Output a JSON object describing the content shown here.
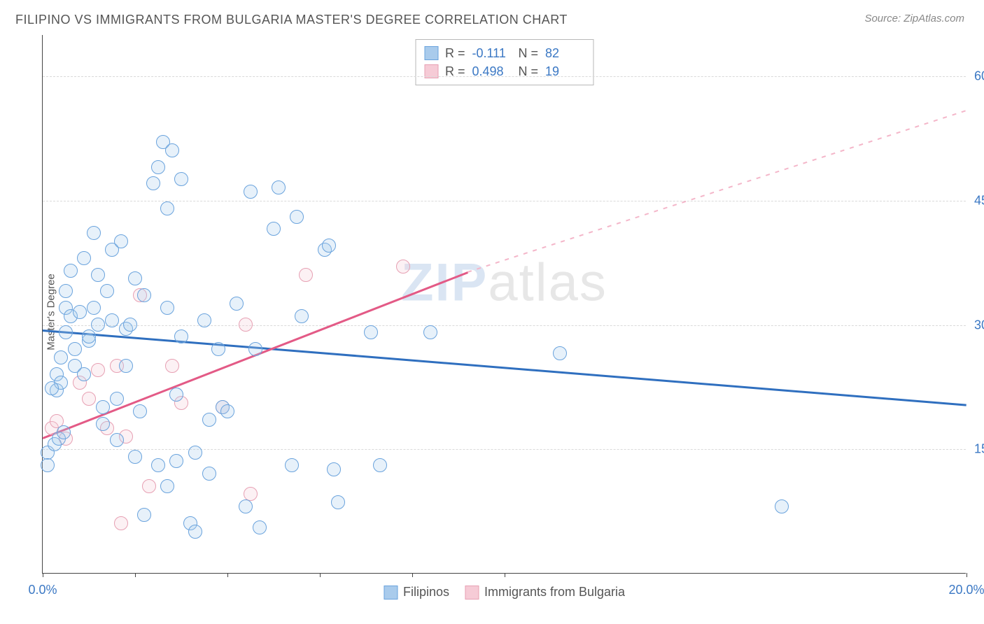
{
  "title": "FILIPINO VS IMMIGRANTS FROM BULGARIA MASTER'S DEGREE CORRELATION CHART",
  "source": "Source: ZipAtlas.com",
  "ylabel": "Master's Degree",
  "watermark": {
    "part1": "ZIP",
    "part2": "atlas"
  },
  "chart": {
    "type": "scatter",
    "background_color": "#ffffff",
    "grid_color": "#d9d9d9",
    "axis_color": "#444444",
    "label_color": "#3b78c4",
    "title_color": "#555555",
    "title_fontsize": 18,
    "label_fontsize": 18,
    "ylabel_fontsize": 15,
    "xlim": [
      0,
      20
    ],
    "ylim": [
      0,
      65
    ],
    "xticks": [
      0,
      2,
      4,
      6,
      8,
      10,
      20
    ],
    "xtick_labels": {
      "0": "0.0%",
      "20": "20.0%"
    },
    "yticks": [
      15,
      30,
      45,
      60
    ],
    "ytick_labels": {
      "15": "15.0%",
      "30": "30.0%",
      "45": "45.0%",
      "60": "60.0%"
    },
    "marker_radius": 10,
    "marker_stroke_width": 1.5,
    "fill_opacity": 0.28,
    "series": [
      {
        "name": "Filipinos",
        "color_stroke": "#6aa3dd",
        "color_fill": "#a9cbec",
        "r_label": "R =",
        "r_value": "-0.111",
        "n_label": "N =",
        "n_value": "82",
        "trendline": {
          "x1": 0,
          "y1": 29.5,
          "x2": 20,
          "y2": 20.5,
          "color": "#2f6fbf",
          "width": 2.5,
          "dash": "none"
        },
        "points": [
          [
            0.1,
            14.5
          ],
          [
            0.1,
            13.0
          ],
          [
            0.3,
            24.0
          ],
          [
            0.3,
            22.0
          ],
          [
            0.4,
            23.0
          ],
          [
            0.4,
            26.0
          ],
          [
            0.5,
            32.0
          ],
          [
            0.5,
            34.0
          ],
          [
            0.5,
            29.0
          ],
          [
            0.6,
            31.0
          ],
          [
            0.6,
            36.5
          ],
          [
            0.7,
            27.0
          ],
          [
            0.7,
            25.0
          ],
          [
            0.8,
            31.5
          ],
          [
            0.9,
            38.0
          ],
          [
            0.9,
            24.0
          ],
          [
            1.0,
            28.0
          ],
          [
            1.0,
            28.5
          ],
          [
            1.1,
            41.0
          ],
          [
            1.1,
            32.0
          ],
          [
            1.2,
            36.0
          ],
          [
            1.2,
            30.0
          ],
          [
            1.3,
            20.0
          ],
          [
            1.3,
            18.0
          ],
          [
            1.4,
            34.0
          ],
          [
            1.5,
            30.5
          ],
          [
            1.5,
            39.0
          ],
          [
            1.6,
            21.0
          ],
          [
            1.6,
            16.0
          ],
          [
            1.7,
            40.0
          ],
          [
            1.8,
            29.5
          ],
          [
            1.8,
            25.0
          ],
          [
            1.9,
            30.0
          ],
          [
            2.0,
            35.5
          ],
          [
            2.0,
            14.0
          ],
          [
            2.1,
            19.5
          ],
          [
            2.2,
            33.5
          ],
          [
            2.2,
            7.0
          ],
          [
            2.4,
            47.0
          ],
          [
            2.5,
            49.0
          ],
          [
            2.5,
            13.0
          ],
          [
            2.6,
            52.0
          ],
          [
            2.7,
            44.0
          ],
          [
            2.7,
            32.0
          ],
          [
            2.7,
            10.5
          ],
          [
            2.8,
            51.0
          ],
          [
            2.9,
            21.5
          ],
          [
            2.9,
            13.5
          ],
          [
            3.0,
            28.5
          ],
          [
            3.0,
            47.5
          ],
          [
            3.2,
            6.0
          ],
          [
            3.3,
            14.5
          ],
          [
            3.3,
            5.0
          ],
          [
            3.5,
            30.5
          ],
          [
            3.6,
            18.5
          ],
          [
            3.6,
            12.0
          ],
          [
            3.8,
            27.0
          ],
          [
            3.9,
            20.0
          ],
          [
            4.0,
            19.5
          ],
          [
            4.2,
            32.5
          ],
          [
            4.4,
            8.0
          ],
          [
            4.5,
            46.0
          ],
          [
            4.6,
            27.0
          ],
          [
            4.7,
            5.5
          ],
          [
            5.0,
            41.5
          ],
          [
            5.1,
            46.5
          ],
          [
            5.4,
            13.0
          ],
          [
            5.5,
            43.0
          ],
          [
            5.6,
            31.0
          ],
          [
            6.1,
            39.0
          ],
          [
            6.2,
            39.5
          ],
          [
            6.3,
            12.5
          ],
          [
            6.4,
            8.5
          ],
          [
            7.1,
            29.0
          ],
          [
            7.3,
            13.0
          ],
          [
            8.4,
            29.0
          ],
          [
            11.2,
            26.5
          ],
          [
            16.0,
            8.0
          ],
          [
            0.2,
            22.3
          ],
          [
            0.25,
            15.5
          ],
          [
            0.35,
            16.2
          ],
          [
            0.45,
            17.0
          ]
        ]
      },
      {
        "name": "Immigrants from Bulgria",
        "display_name": "Immigrants from Bulgaria",
        "color_stroke": "#e7a0b3",
        "color_fill": "#f6cbd6",
        "r_label": "R =",
        "r_value": "0.498",
        "n_label": "N =",
        "n_value": "19",
        "trendline_solid": {
          "x1": 0,
          "y1": 16.5,
          "x2": 9.2,
          "y2": 36.5,
          "color": "#e35a86",
          "width": 2.5
        },
        "trendline_dash": {
          "x1": 9.2,
          "y1": 36.5,
          "x2": 20,
          "y2": 56.0,
          "color": "#f4b6c9",
          "width": 1.8
        },
        "points": [
          [
            0.2,
            17.5
          ],
          [
            0.3,
            18.3
          ],
          [
            0.5,
            16.2
          ],
          [
            0.8,
            23.0
          ],
          [
            1.0,
            21.0
          ],
          [
            1.2,
            24.5
          ],
          [
            1.4,
            17.5
          ],
          [
            1.6,
            25.0
          ],
          [
            1.7,
            6.0
          ],
          [
            1.8,
            16.5
          ],
          [
            2.1,
            33.5
          ],
          [
            2.3,
            10.5
          ],
          [
            2.8,
            25.0
          ],
          [
            3.0,
            20.5
          ],
          [
            3.9,
            20.0
          ],
          [
            4.4,
            30.0
          ],
          [
            4.5,
            9.5
          ],
          [
            5.7,
            36.0
          ],
          [
            7.8,
            37.0
          ]
        ]
      }
    ]
  }
}
